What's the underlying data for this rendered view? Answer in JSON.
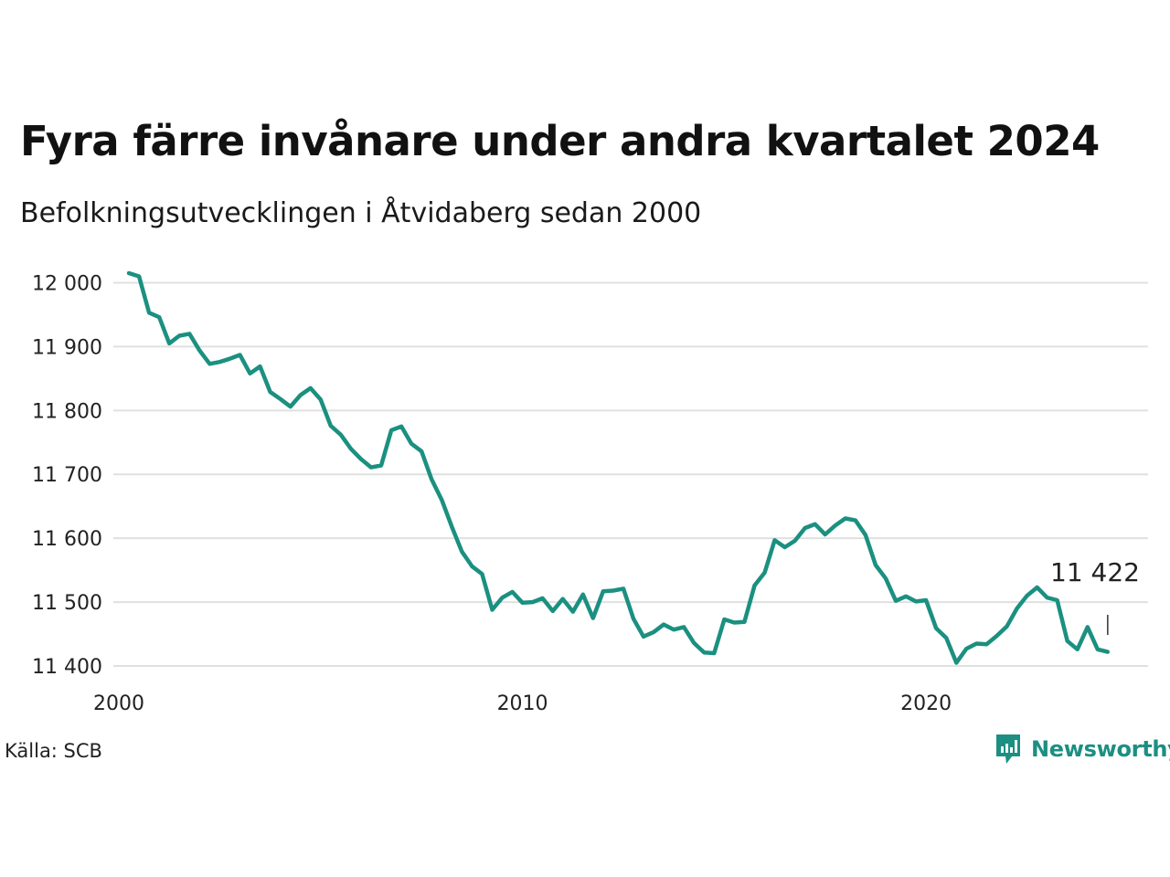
{
  "header": {
    "title": "Fyra färre invånare under andra kvartalet 2024",
    "subtitle": "Befolkningsutvecklingen i Åtvidaberg sedan 2000"
  },
  "footer": {
    "source": "Källa: SCB",
    "brand": "Newsworthy"
  },
  "colors": {
    "line": "#1b9080",
    "grid": "#e0e0e0",
    "brand": "#1b8f82"
  },
  "chart_data": {
    "type": "line",
    "title": "Fyra färre invånare under andra kvartalet 2024",
    "subtitle": "Befolkningsutvecklingen i Åtvidaberg sedan 2000",
    "xlabel": "",
    "ylabel": "",
    "x_ticks": [
      {
        "value": 2000,
        "label": "2000"
      },
      {
        "value": 2010,
        "label": "2010"
      },
      {
        "value": 2020,
        "label": "2020"
      }
    ],
    "y_ticks": [
      {
        "value": 11400,
        "label": "11 400"
      },
      {
        "value": 11500,
        "label": "11 500"
      },
      {
        "value": 11600,
        "label": "11 600"
      },
      {
        "value": 11700,
        "label": "11 700"
      },
      {
        "value": 11800,
        "label": "11 800"
      },
      {
        "value": 11900,
        "label": "11 900"
      },
      {
        "value": 12000,
        "label": "12 000"
      }
    ],
    "xlim": [
      2000,
      2025.5
    ],
    "ylim": [
      11390,
      12025
    ],
    "grid": true,
    "annotation": {
      "label": "11 422",
      "x": 2024.5,
      "y": 11422
    },
    "series": [
      {
        "x": [
          2000.25,
          2000.5,
          2000.75,
          2001.0,
          2001.25,
          2001.5,
          2001.75,
          2002.0,
          2002.25,
          2002.5,
          2002.75,
          2003.0,
          2003.25,
          2003.5,
          2003.75,
          2004.0,
          2004.25,
          2004.5,
          2004.75,
          2005.0,
          2005.25,
          2005.5,
          2005.75,
          2006.0,
          2006.25,
          2006.5,
          2006.75,
          2007.0,
          2007.25,
          2007.5,
          2007.75,
          2008.0,
          2008.25,
          2008.5,
          2008.75,
          2009.0,
          2009.25,
          2009.5,
          2009.75,
          2010.0,
          2010.25,
          2010.5,
          2010.75,
          2011.0,
          2011.25,
          2011.5,
          2011.75,
          2012.0,
          2012.25,
          2012.5,
          2012.75,
          2013.0,
          2013.25,
          2013.5,
          2013.75,
          2014.0,
          2014.25,
          2014.5,
          2014.75,
          2015.0,
          2015.25,
          2015.5,
          2015.75,
          2016.0,
          2016.25,
          2016.5,
          2016.75,
          2017.0,
          2017.25,
          2017.5,
          2017.75,
          2018.0,
          2018.25,
          2018.5,
          2018.75,
          2019.0,
          2019.25,
          2019.5,
          2019.75,
          2020.0,
          2020.25,
          2020.5,
          2020.75,
          2021.0,
          2021.25,
          2021.5,
          2021.75,
          2022.0,
          2022.25,
          2022.5,
          2022.75,
          2023.0,
          2023.25,
          2023.5,
          2023.75,
          2024.0,
          2024.25,
          2024.5
        ],
        "y": [
          12015,
          12010,
          11953,
          11946,
          11905,
          11917,
          11920,
          11894,
          11873,
          11876,
          11881,
          11887,
          11858,
          11869,
          11829,
          11818,
          11806,
          11824,
          11835,
          11817,
          11776,
          11762,
          11740,
          11724,
          11711,
          11714,
          11769,
          11775,
          11748,
          11736,
          11692,
          11660,
          11618,
          11579,
          11556,
          11544,
          11488,
          11507,
          11516,
          11499,
          11500,
          11506,
          11486,
          11505,
          11485,
          11512,
          11475,
          11517,
          11518,
          11521,
          11474,
          11446,
          11453,
          11465,
          11457,
          11461,
          11436,
          11421,
          11420,
          11473,
          11468,
          11469,
          11526,
          11546,
          11597,
          11586,
          11596,
          11616,
          11622,
          11606,
          11620,
          11631,
          11628,
          11605,
          11558,
          11537,
          11502,
          11509,
          11501,
          11503,
          11459,
          11444,
          11405,
          11427,
          11435,
          11434,
          11447,
          11462,
          11490,
          11510,
          11523,
          11507,
          11503,
          11439,
          11426,
          11461,
          11426,
          11422
        ]
      }
    ]
  }
}
